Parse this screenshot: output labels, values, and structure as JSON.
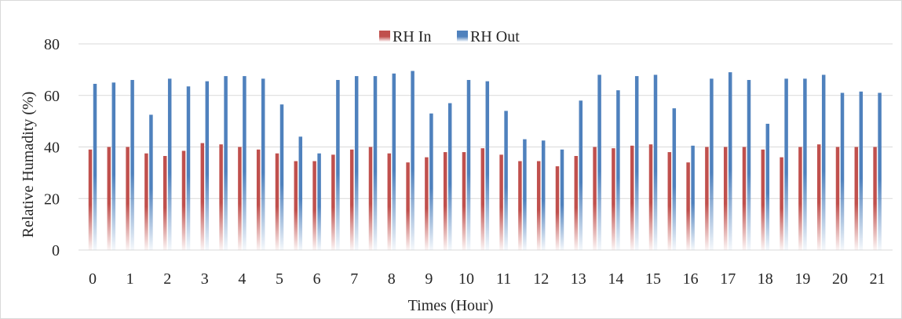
{
  "chart_data": {
    "type": "bar",
    "xlabel": "Times (Hour)",
    "ylabel": "Relative Humadity (%)",
    "ylim": [
      0,
      80
    ],
    "yticks": [
      0,
      20,
      40,
      60,
      80
    ],
    "x": [
      0,
      0.5,
      1,
      1.5,
      2,
      2.5,
      3,
      3.5,
      4,
      4.5,
      5,
      5.5,
      6,
      6.5,
      7,
      7.5,
      8,
      8.5,
      9,
      9.5,
      10,
      10.5,
      11,
      11.5,
      12,
      12.5,
      13,
      13.5,
      14,
      14.5,
      15,
      15.5,
      16,
      16.5,
      17,
      17.5,
      18,
      18.5,
      19,
      19.5,
      20,
      20.5,
      21
    ],
    "xtick_labels": [
      "0",
      "1",
      "2",
      "3",
      "4",
      "5",
      "6",
      "7",
      "8",
      "9",
      "10",
      "11",
      "12",
      "13",
      "14",
      "15",
      "16",
      "17",
      "18",
      "19",
      "20",
      "21"
    ],
    "grid": true,
    "legend_position": "top-center",
    "series": [
      {
        "name": "RH In",
        "color": "#c0504d",
        "values": [
          39,
          40,
          40,
          37.5,
          36.5,
          38.5,
          41.5,
          41,
          40,
          39,
          37.5,
          34.5,
          34.5,
          37,
          39,
          40,
          37.5,
          34,
          36,
          38,
          38,
          39.5,
          37,
          34.5,
          34.5,
          32.5,
          36.5,
          40,
          39.5,
          40.5,
          41,
          38,
          34,
          40,
          40,
          40,
          39,
          36,
          40,
          41,
          40,
          40,
          40
        ]
      },
      {
        "name": "RH Out",
        "color": "#4f81bd",
        "values": [
          64.5,
          65,
          66,
          52.5,
          66.5,
          63.5,
          65.5,
          67.5,
          67.5,
          66.5,
          56.5,
          44,
          37.5,
          66,
          67.5,
          67.5,
          68.5,
          69.5,
          53,
          57,
          66,
          65.5,
          54,
          43,
          42.5,
          39,
          58,
          68,
          62,
          67.5,
          68,
          55,
          40.5,
          66.5,
          69,
          66,
          49,
          66.5,
          66.5,
          68,
          61,
          61.5,
          61
        ]
      }
    ]
  }
}
